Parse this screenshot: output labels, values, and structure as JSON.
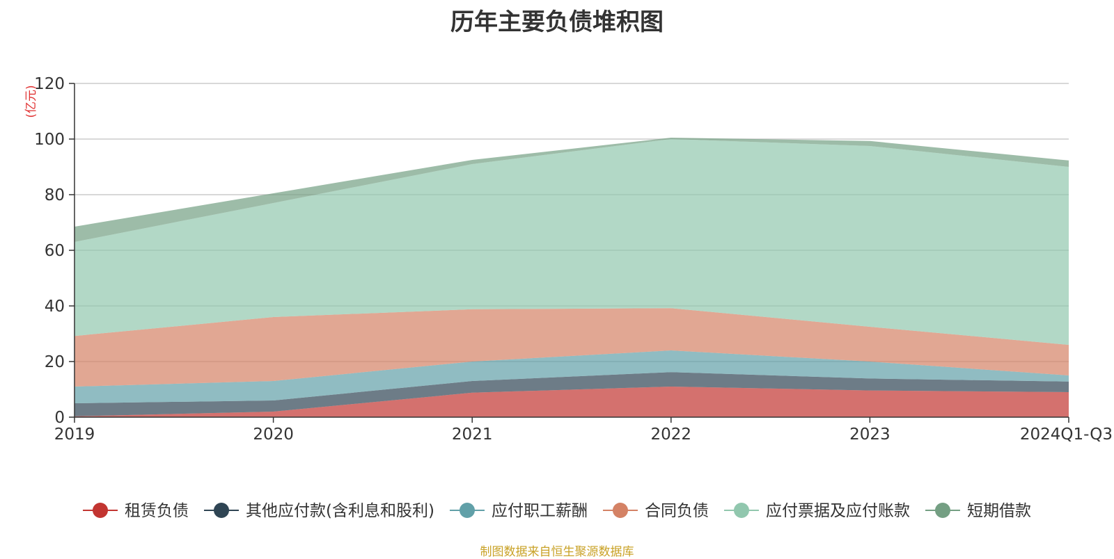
{
  "chart_data": {
    "type": "area",
    "stacked": true,
    "title": "历年主要负债堆积图",
    "unit_label": "(亿元)",
    "categories": [
      "2019",
      "2020",
      "2021",
      "2022",
      "2023",
      "2024Q1-Q3"
    ],
    "ylim": [
      0,
      120
    ],
    "yticks": [
      0,
      20,
      40,
      60,
      80,
      100,
      120
    ],
    "grid": true,
    "legend_position": "bottom",
    "series": [
      {
        "name": "租赁负债",
        "color": "#c23531",
        "values": [
          0.3,
          2.0,
          8.8,
          11.0,
          9.6,
          9.0
        ]
      },
      {
        "name": "其他应付款(含利息和股利)",
        "color": "#2f4554",
        "values": [
          4.7,
          4.0,
          4.2,
          5.2,
          4.3,
          3.8
        ]
      },
      {
        "name": "应付职工薪酬",
        "color": "#61a0a8",
        "values": [
          6.0,
          7.0,
          7.0,
          7.8,
          6.1,
          2.2
        ]
      },
      {
        "name": "合同负债",
        "color": "#d48265",
        "values": [
          18.2,
          23.0,
          18.8,
          15.2,
          12.5,
          11.0
        ]
      },
      {
        "name": "应付票据及应付账款",
        "color": "#91c7ae",
        "values": [
          33.8,
          41.0,
          52.2,
          60.8,
          65.0,
          64.0
        ]
      },
      {
        "name": "短期借款",
        "color": "#749f83",
        "values": [
          5.5,
          3.5,
          1.5,
          0.5,
          1.8,
          2.3
        ]
      }
    ]
  },
  "source_note": "制图数据来自恒生聚源数据库"
}
